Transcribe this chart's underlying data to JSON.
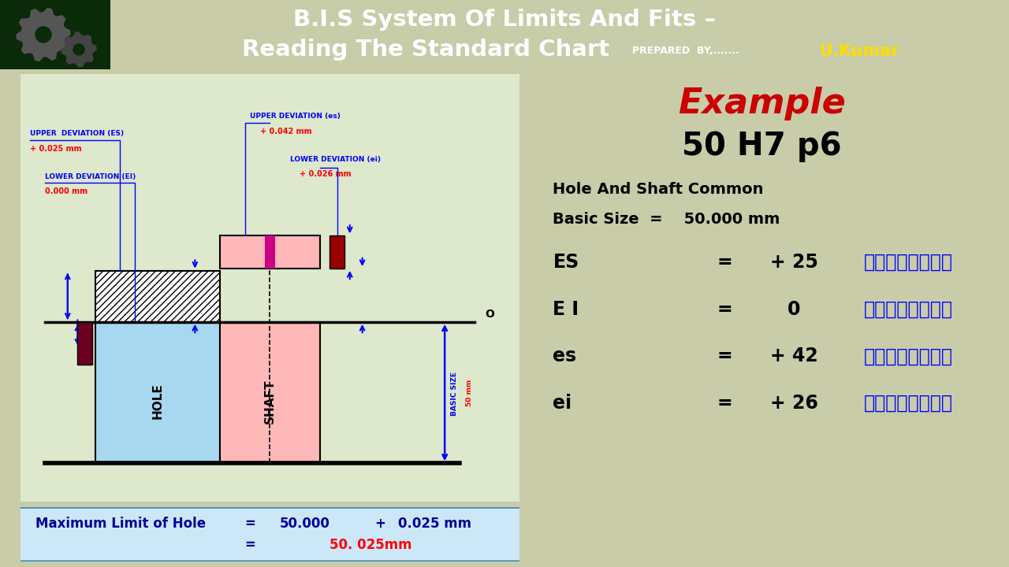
{
  "title_line1": "B.I.S System Of Limits And Fits –",
  "title_line2": "Reading The Standard Chart",
  "prepared_by": "PREPARED  BY,.......",
  "prepared_by_name": "U.Kumar",
  "header_bg": "#1a5c1a",
  "bg_color": "#c8cca8",
  "diagram_bg": "#dde8cc",
  "diagram_border": "#4488bb",
  "bottom_bg": "#cce8f8",
  "example_title": "Example",
  "example_subtitle": "50 H7 p6",
  "hole_shaft_label": "Hole And Shaft Common",
  "basic_size_label": "Basic Size  =    50.000 mm",
  "rows": [
    {
      "symbol": "ES",
      "eq": "=",
      "value": "+ 25",
      "unit": "मायक्रॉन"
    },
    {
      "symbol": "E I",
      "eq": "=",
      "value": "0",
      "unit": "मायक्रॉन"
    },
    {
      "symbol": "es",
      "eq": "=",
      "value": "+ 42",
      "unit": "मायक्रॉन"
    },
    {
      "symbol": "ei",
      "eq": "=",
      "value": "+ 26",
      "unit": "मायक्रॉन"
    }
  ],
  "hole_color": "#a8d8f0",
  "shaft_color": "#ffb8b8",
  "hatch_color": "white",
  "dark_red": "#6b0020",
  "magenta": "#cc0088",
  "crimson": "#990000"
}
